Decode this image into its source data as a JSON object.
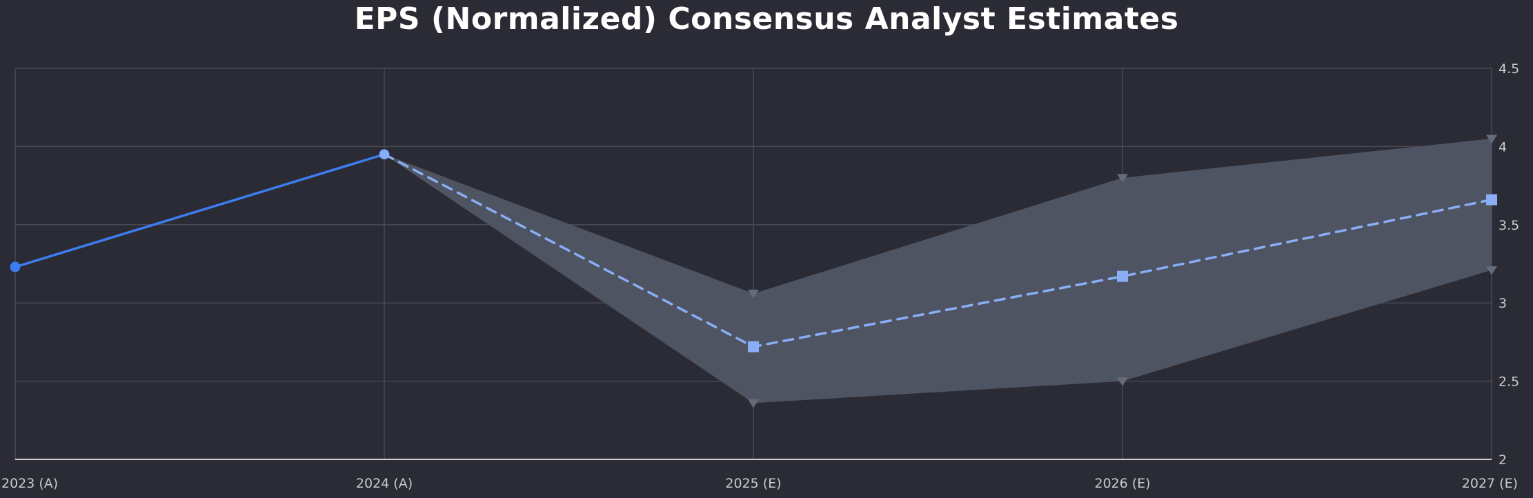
{
  "chart_data": {
    "type": "line",
    "title": "EPS (Normalized) Consensus Analyst Estimates",
    "categories": [
      "2023 (A)",
      "2024 (A)",
      "2025 (E)",
      "2026 (E)",
      "2027 (E)"
    ],
    "ylim": [
      2,
      4.5
    ],
    "y_ticks": [
      "2",
      "2.5",
      "3",
      "3.5",
      "4",
      "4.5"
    ],
    "y_tick_values": [
      2,
      2.5,
      3,
      3.5,
      4,
      4.5
    ],
    "grid": true,
    "y_axis_position": "right",
    "series": [
      {
        "role": "actual",
        "style": "solid",
        "marker": "circle",
        "color": "#3d7df0",
        "points": [
          {
            "category": "2023 (A)",
            "value": 3.23
          },
          {
            "category": "2024 (A)",
            "value": 3.95
          }
        ]
      },
      {
        "role": "consensus",
        "style": "dashed",
        "marker": "square",
        "color": "#8aaef5",
        "points": [
          {
            "category": "2024 (A)",
            "value": 3.95
          },
          {
            "category": "2025 (E)",
            "value": 2.72
          },
          {
            "category": "2026 (E)",
            "value": 3.17
          },
          {
            "category": "2027 (E)",
            "value": 3.66
          }
        ]
      }
    ],
    "range_band": {
      "color": "#4f5463",
      "marker_color": "#666b7a",
      "marker": "triangle-down",
      "points": [
        {
          "category": "2024 (A)",
          "high": 3.95,
          "low": 3.95
        },
        {
          "category": "2025 (E)",
          "high": 3.06,
          "low": 2.36
        },
        {
          "category": "2026 (E)",
          "high": 3.8,
          "low": 2.5
        },
        {
          "category": "2027 (E)",
          "high": 4.05,
          "low": 3.21
        }
      ]
    }
  }
}
